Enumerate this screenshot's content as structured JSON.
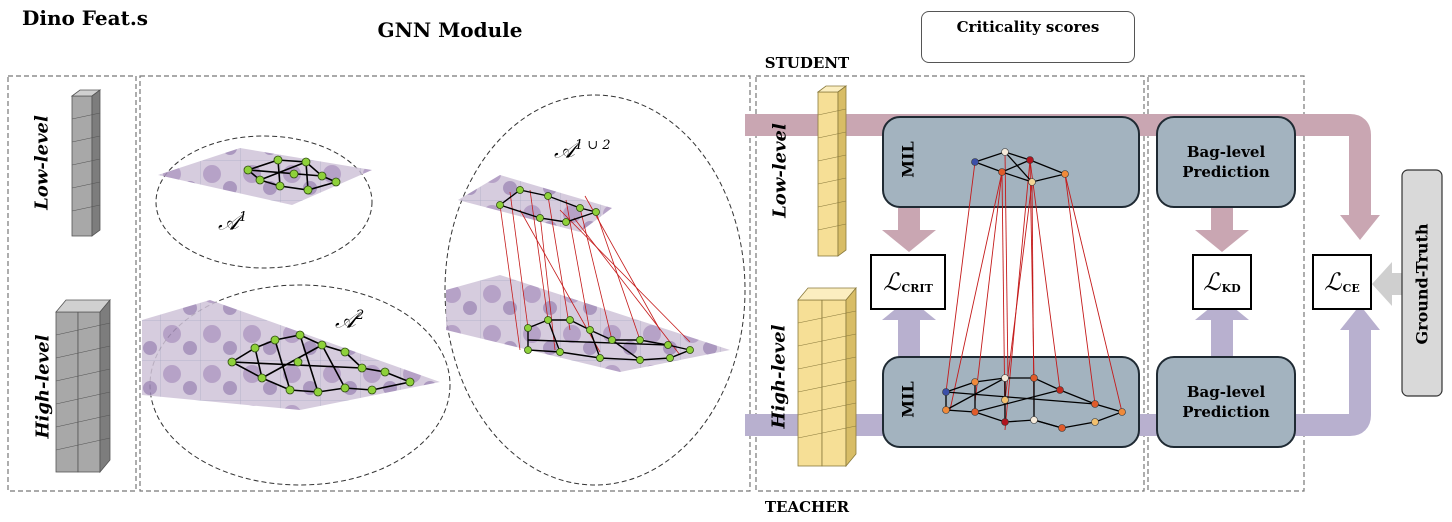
{
  "headers": {
    "dino": "Dino Feat.s",
    "gnn": "GNN Module",
    "student": "STUDENT",
    "teacher": "TEACHER"
  },
  "left_labels": {
    "low": "Low-level",
    "high": "High-level"
  },
  "student_labels": {
    "low": "Low-level",
    "high": "High-level"
  },
  "graph_labels": {
    "a1": "𝒜",
    "a1_sup": "1",
    "a2": "𝒜",
    "a2_sup": "2",
    "a12": "𝒜",
    "a12_sup": "1 ∪ 2"
  },
  "mil_top": "MIL",
  "mil_bottom": "MIL",
  "bag_top": "Bag-level Prediction",
  "bag_bottom": "Bag-level Prediction",
  "losses": {
    "crit": "ℒ",
    "crit_sub": "CRIT",
    "kd": "ℒ",
    "kd_sub": "KD",
    "ce": "ℒ",
    "ce_sub": "CE"
  },
  "ground_truth": "Ground-Truth",
  "legend": {
    "title": "Criticality scores",
    "colors": [
      "#2b3d9c",
      "#8fa7d6",
      "#f4eadb",
      "#f2c06e",
      "#e05b2a",
      "#a30e1b"
    ]
  }
}
